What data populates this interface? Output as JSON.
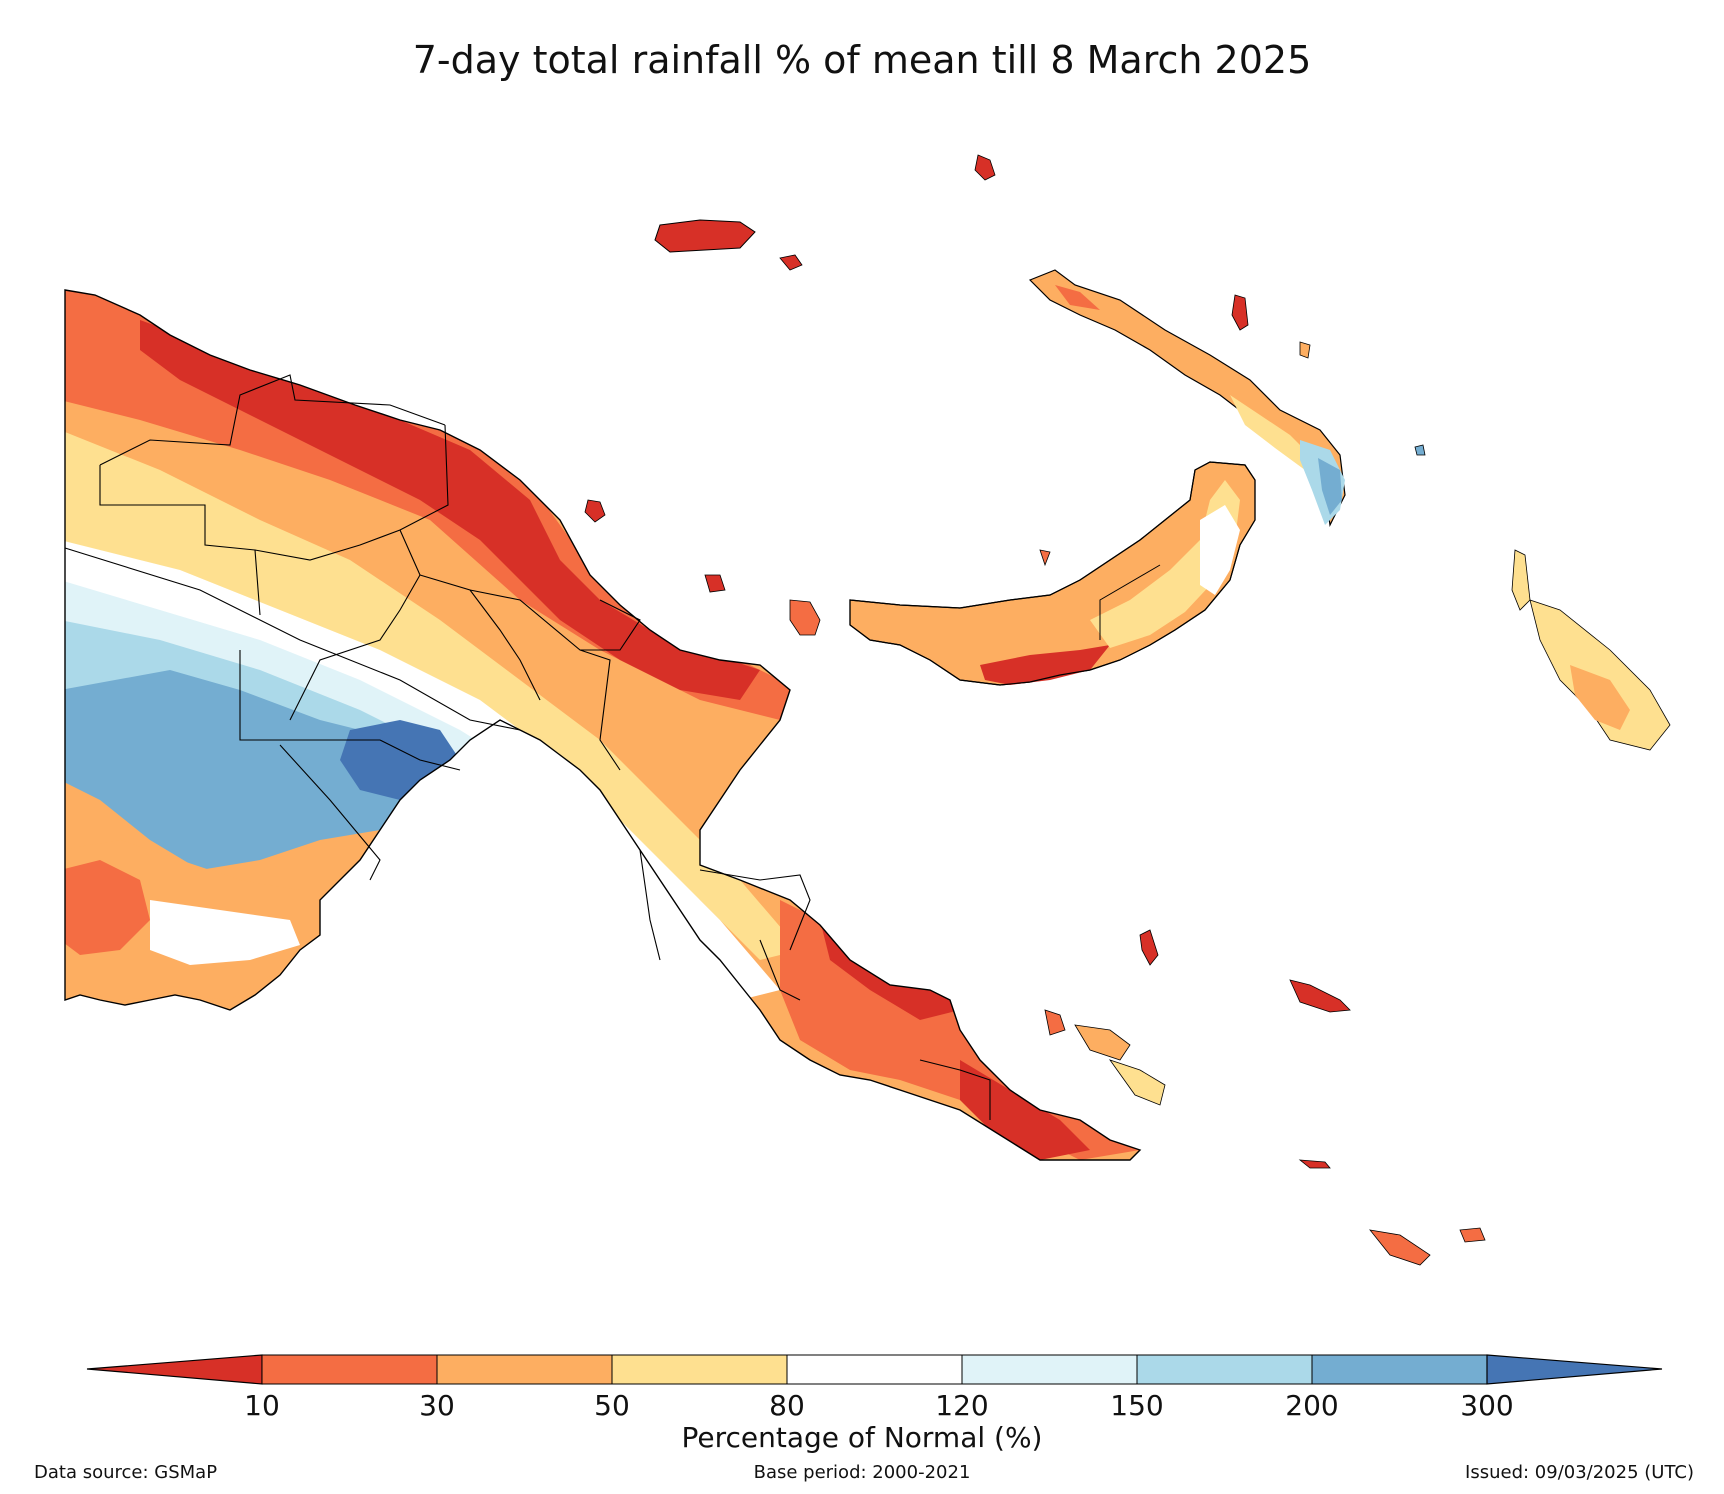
{
  "title": "7-day total rainfall % of mean till 8 March 2025",
  "legend": {
    "label": "Percentage of Normal (%)",
    "ticks": [
      "10",
      "30",
      "50",
      "80",
      "120",
      "150",
      "200",
      "300"
    ],
    "bins": [
      {
        "range": "<10",
        "color": "#d73027"
      },
      {
        "range": "10-30",
        "color": "#f46d43"
      },
      {
        "range": "30-50",
        "color": "#fdae61"
      },
      {
        "range": "50-80",
        "color": "#fee090"
      },
      {
        "range": "80-120",
        "color": "#ffffff"
      },
      {
        "range": "120-150",
        "color": "#e0f3f8"
      },
      {
        "range": "150-200",
        "color": "#abd9e9"
      },
      {
        "range": "200-300",
        "color": "#74add1"
      },
      {
        "range": ">300",
        "color": "#4575b4"
      }
    ]
  },
  "footer": {
    "source": "Data source: GSMaP",
    "base_period": "Base period: 2000-2021",
    "issued": "Issued: 09/03/2025 (UTC)"
  }
}
